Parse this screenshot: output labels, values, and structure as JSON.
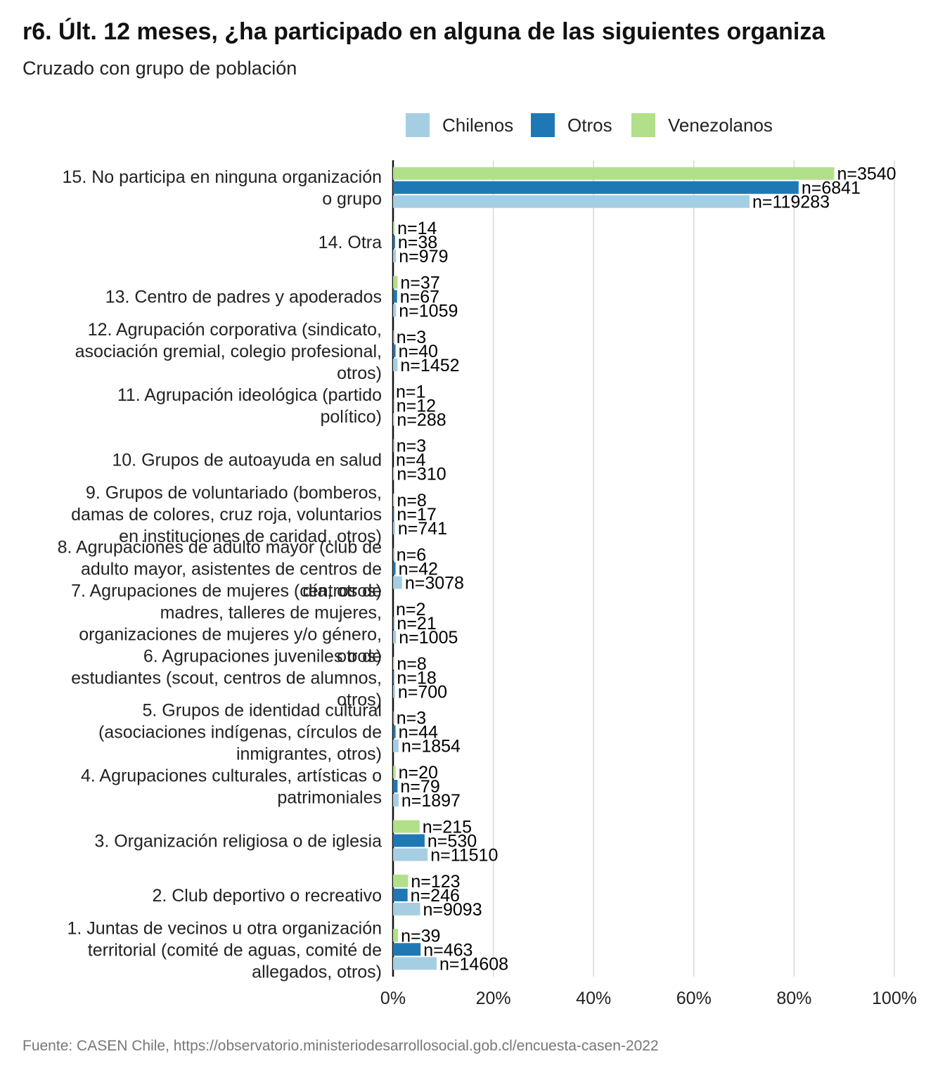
{
  "header": {
    "title": "r6. Últ. 12 meses, ¿ha participado en alguna de las siguientes organiza",
    "subtitle": "Cruzado con grupo de población"
  },
  "footer": {
    "source": "Fuente: CASEN Chile, https://observatorio.ministeriodesarrollosocial.gob.cl/encuesta-casen-2022"
  },
  "chart_data": {
    "type": "bar",
    "orientation": "horizontal",
    "title": "r6. Últ. 12 meses, ¿ha participado en alguna de las siguientes organiza",
    "subtitle": "Cruzado con grupo de población",
    "xlabel": "",
    "ylabel": "",
    "xlim": [
      0,
      100
    ],
    "x_ticks": [
      "0%",
      "20%",
      "40%",
      "60%",
      "80%",
      "100%"
    ],
    "grid": "vertical",
    "legend_position": "top",
    "series": [
      {
        "name": "Chilenos",
        "color": "#a6cee3"
      },
      {
        "name": "Otros",
        "color": "#1f78b4"
      },
      {
        "name": "Venezolanos",
        "color": "#b2df8a"
      }
    ],
    "categories": [
      {
        "label_lines": [
          "15. No participa en ninguna organización",
          "o grupo"
        ],
        "values": {
          "Venezolanos": 88.0,
          "Otros": 80.9,
          "Chilenos": 71.1
        },
        "labels": {
          "Venezolanos": "n=3540",
          "Otros": "n=6841",
          "Chilenos": "n=119283"
        }
      },
      {
        "label_lines": [
          "14. Otra"
        ],
        "values": {
          "Venezolanos": 0.3,
          "Otros": 0.4,
          "Chilenos": 0.6
        },
        "labels": {
          "Venezolanos": "n=14",
          "Otros": "n=38",
          "Chilenos": "n=979"
        }
      },
      {
        "label_lines": [
          "13. Centro de padres y apoderados"
        ],
        "values": {
          "Venezolanos": 0.9,
          "Otros": 0.8,
          "Chilenos": 0.6
        },
        "labels": {
          "Venezolanos": "n=37",
          "Otros": "n=67",
          "Chilenos": "n=1059"
        }
      },
      {
        "label_lines": [
          "12. Agrupación corporativa (sindicato,",
          "asociación gremial, colegio profesional,",
          "otros)"
        ],
        "values": {
          "Venezolanos": 0.1,
          "Otros": 0.5,
          "Chilenos": 0.9
        },
        "labels": {
          "Venezolanos": "n=3",
          "Otros": "n=40",
          "Chilenos": "n=1452"
        }
      },
      {
        "label_lines": [
          "11. Agrupación ideológica (partido",
          "político)"
        ],
        "values": {
          "Venezolanos": 0.0,
          "Otros": 0.1,
          "Chilenos": 0.2
        },
        "labels": {
          "Venezolanos": "n=1",
          "Otros": "n=12",
          "Chilenos": "n=288"
        }
      },
      {
        "label_lines": [
          "10. Grupos de autoayuda en salud"
        ],
        "values": {
          "Venezolanos": 0.1,
          "Otros": 0.0,
          "Chilenos": 0.2
        },
        "labels": {
          "Venezolanos": "n=3",
          "Otros": "n=4",
          "Chilenos": "n=310"
        }
      },
      {
        "label_lines": [
          "9. Grupos de voluntariado (bomberos,",
          "damas de colores, cruz roja, voluntarios",
          "en instituciones de caridad, otros)"
        ],
        "values": {
          "Venezolanos": 0.2,
          "Otros": 0.2,
          "Chilenos": 0.4
        },
        "labels": {
          "Venezolanos": "n=8",
          "Otros": "n=17",
          "Chilenos": "n=741"
        }
      },
      {
        "label_lines": [
          "8. Agrupaciones de adulto mayor (club de",
          "adulto mayor, asistentes de centros de",
          "día, otros)"
        ],
        "values": {
          "Venezolanos": 0.1,
          "Otros": 0.5,
          "Chilenos": 1.8
        },
        "labels": {
          "Venezolanos": "n=6",
          "Otros": "n=42",
          "Chilenos": "n=3078"
        }
      },
      {
        "label_lines": [
          "7. Agrupaciones de mujeres (centros de",
          "madres, talleres de mujeres,",
          "organizaciones de mujeres y/o género,",
          "otros)"
        ],
        "values": {
          "Venezolanos": 0.0,
          "Otros": 0.2,
          "Chilenos": 0.6
        },
        "labels": {
          "Venezolanos": "n=2",
          "Otros": "n=21",
          "Chilenos": "n=1005"
        }
      },
      {
        "label_lines": [
          "6. Agrupaciones juveniles o de",
          "estudiantes (scout, centros de alumnos,",
          "otros)"
        ],
        "values": {
          "Venezolanos": 0.2,
          "Otros": 0.2,
          "Chilenos": 0.4
        },
        "labels": {
          "Venezolanos": "n=8",
          "Otros": "n=18",
          "Chilenos": "n=700"
        }
      },
      {
        "label_lines": [
          "5. Grupos de identidad cultural",
          "(asociaciones indígenas, círculos de",
          "inmigrantes, otros)"
        ],
        "values": {
          "Venezolanos": 0.1,
          "Otros": 0.5,
          "Chilenos": 1.1
        },
        "labels": {
          "Venezolanos": "n=3",
          "Otros": "n=44",
          "Chilenos": "n=1854"
        }
      },
      {
        "label_lines": [
          "4. Agrupaciones culturales, artísticas o",
          "patrimoniales"
        ],
        "values": {
          "Venezolanos": 0.5,
          "Otros": 0.9,
          "Chilenos": 1.1
        },
        "labels": {
          "Venezolanos": "n=20",
          "Otros": "n=79",
          "Chilenos": "n=1897"
        }
      },
      {
        "label_lines": [
          "3. Organización religiosa o de iglesia"
        ],
        "values": {
          "Venezolanos": 5.3,
          "Otros": 6.3,
          "Chilenos": 6.9
        },
        "labels": {
          "Venezolanos": "n=215",
          "Otros": "n=530",
          "Chilenos": "n=11510"
        }
      },
      {
        "label_lines": [
          "2. Club deportivo o recreativo"
        ],
        "values": {
          "Venezolanos": 3.0,
          "Otros": 2.9,
          "Chilenos": 5.4
        },
        "labels": {
          "Venezolanos": "n=123",
          "Otros": "n=246",
          "Chilenos": "n=9093"
        }
      },
      {
        "label_lines": [
          "1. Juntas de vecinos u otra organización",
          "territorial (comité de aguas, comité de",
          "allegados, otros)"
        ],
        "values": {
          "Venezolanos": 1.0,
          "Otros": 5.5,
          "Chilenos": 8.7
        },
        "labels": {
          "Venezolanos": "n=39",
          "Otros": "n=463",
          "Chilenos": "n=14608"
        }
      }
    ]
  }
}
